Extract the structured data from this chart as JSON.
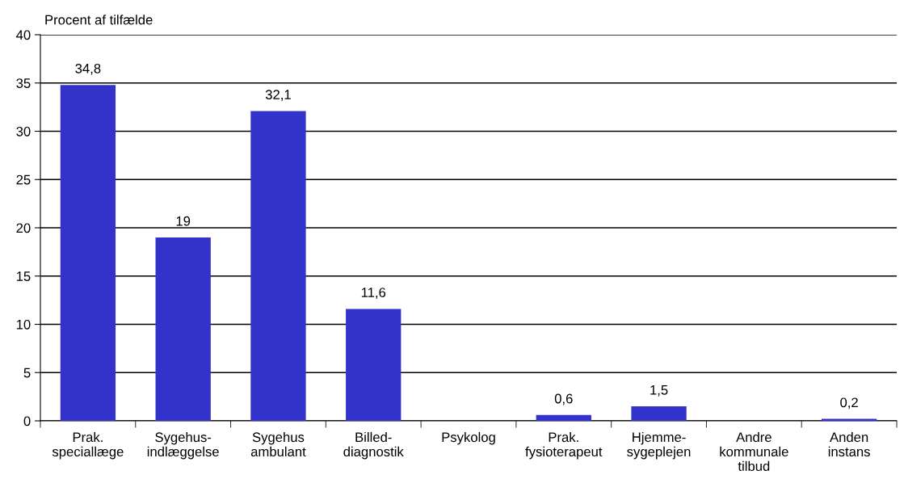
{
  "chart_data": {
    "type": "bar",
    "ylabel": "Procent af tilfælde",
    "categories": [
      "Prak.\nspeciallæge",
      "Sygehus-\nindlæggelse",
      "Sygehus\nambulant",
      "Billed-\ndiagnostik",
      "Psykolog",
      "Prak.\nfysioterapeut",
      "Hjemme-\nsygeplejen",
      "Andre\nkommunale\ntilbud",
      "Anden\ninstans"
    ],
    "values": [
      34.8,
      19,
      32.1,
      11.6,
      null,
      0.6,
      1.5,
      null,
      0.2
    ],
    "value_labels": [
      "34,8",
      "19",
      "32,1",
      "11,6",
      null,
      "0,6",
      "1,5",
      null,
      "0,2"
    ],
    "color": "#3333cc",
    "ylim": [
      0,
      40
    ],
    "yticks": [
      0,
      5,
      10,
      15,
      20,
      25,
      30,
      35,
      40
    ],
    "grid": "y"
  }
}
